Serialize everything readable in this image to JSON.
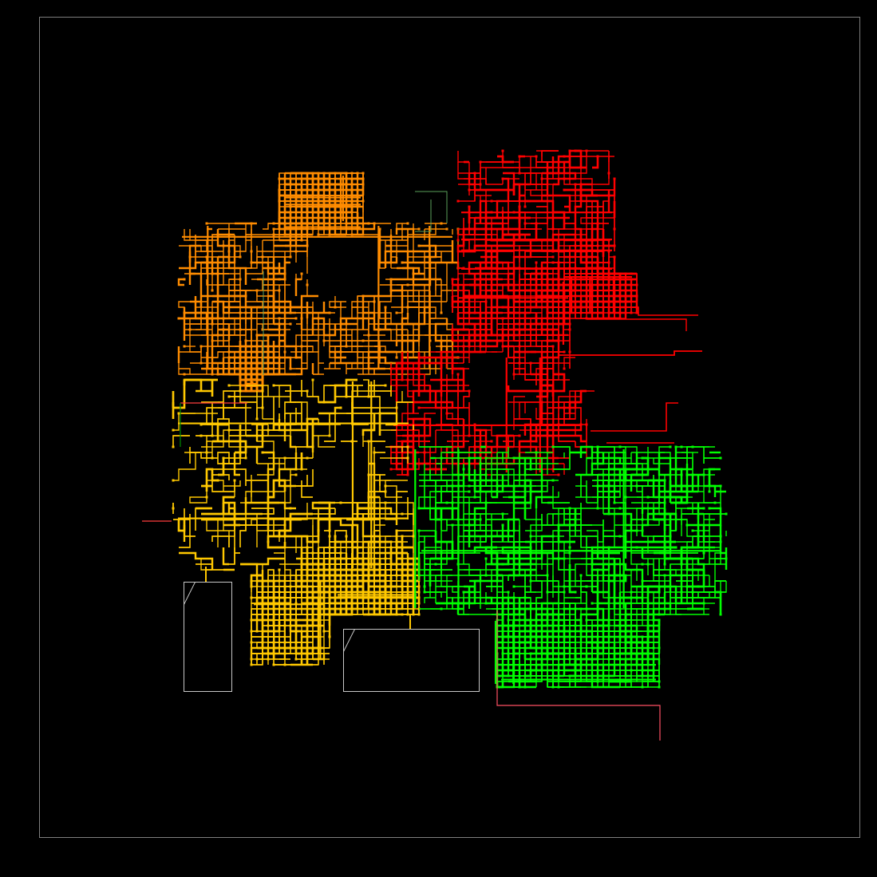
{
  "diagram": {
    "background": "#000000",
    "frame_color": "#7f7f7f",
    "regions": [
      {
        "id": "orange",
        "color": "#ff8c00"
      },
      {
        "id": "red",
        "color": "#ff0000"
      },
      {
        "id": "yellow",
        "color": "#ffc800"
      },
      {
        "id": "green",
        "color": "#00ff00"
      }
    ],
    "feeder_colors": {
      "red": "#ff3c3c",
      "dark_green": "#008800",
      "grey": "#c8c8c8",
      "pink": "#ff5064"
    },
    "substations": [
      {
        "id": "substation-left"
      },
      {
        "id": "substation-bottom"
      }
    ]
  }
}
